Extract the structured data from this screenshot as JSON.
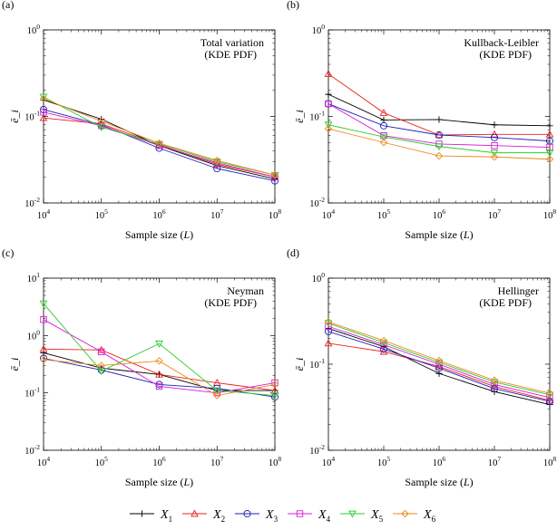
{
  "legend": {
    "items": [
      {
        "symbol": "X",
        "sub": "1",
        "color": "#000000",
        "marker": "plus"
      },
      {
        "symbol": "X",
        "sub": "2",
        "color": "#e8231b",
        "marker": "triangle"
      },
      {
        "symbol": "X",
        "sub": "3",
        "color": "#1f1fb4",
        "marker": "circle"
      },
      {
        "symbol": "X",
        "sub": "4",
        "color": "#d81bd8",
        "marker": "square"
      },
      {
        "symbol": "X",
        "sub": "5",
        "color": "#2ccd2c",
        "marker": "triangle-down"
      },
      {
        "symbol": "X",
        "sub": "6",
        "color": "#ed8a1d",
        "marker": "diamond"
      }
    ]
  },
  "chart_data": [
    {
      "panel": "(a)",
      "type": "line",
      "title": "Total variation",
      "subtitle": "(KDE PDF)",
      "xlabel": "Sample size",
      "xlabel_var": "L",
      "ylabel": "ē_i",
      "xscale": "log",
      "yscale": "log",
      "xlim": [
        10000,
        100000000
      ],
      "ylim": [
        0.01,
        1
      ],
      "xticks": [
        {
          "base": "10",
          "exp": "4"
        },
        {
          "base": "10",
          "exp": "5"
        },
        {
          "base": "10",
          "exp": "6"
        },
        {
          "base": "10",
          "exp": "7"
        },
        {
          "base": "10",
          "exp": "8"
        }
      ],
      "yticks": [
        {
          "base": "10",
          "exp": "-2"
        },
        {
          "base": "10",
          "exp": "-1"
        },
        {
          "base": "10",
          "exp": "0"
        }
      ],
      "x": [
        10000,
        100000,
        1000000,
        10000000,
        100000000
      ],
      "series": [
        {
          "name": "X1",
          "values": [
            0.155,
            0.093,
            0.046,
            0.027,
            0.019
          ]
        },
        {
          "name": "X2",
          "values": [
            0.096,
            0.082,
            0.047,
            0.028,
            0.02
          ]
        },
        {
          "name": "X3",
          "values": [
            0.12,
            0.08,
            0.043,
            0.025,
            0.018
          ]
        },
        {
          "name": "X4",
          "values": [
            0.112,
            0.078,
            0.046,
            0.029,
            0.02
          ]
        },
        {
          "name": "X5",
          "values": [
            0.168,
            0.075,
            0.048,
            0.03,
            0.021
          ]
        },
        {
          "name": "X6",
          "values": [
            0.16,
            0.088,
            0.049,
            0.031,
            0.021
          ]
        }
      ]
    },
    {
      "panel": "(b)",
      "type": "line",
      "title": "Kullback-Leibler",
      "subtitle": "(KDE PDF)",
      "xlabel": "Sample size",
      "xlabel_var": "L",
      "ylabel": "ē_i",
      "xscale": "log",
      "yscale": "log",
      "xlim": [
        10000,
        100000000
      ],
      "ylim": [
        0.01,
        1
      ],
      "xticks": [
        {
          "base": "10",
          "exp": "4"
        },
        {
          "base": "10",
          "exp": "5"
        },
        {
          "base": "10",
          "exp": "6"
        },
        {
          "base": "10",
          "exp": "7"
        },
        {
          "base": "10",
          "exp": "8"
        }
      ],
      "yticks": [
        {
          "base": "10",
          "exp": "-2"
        },
        {
          "base": "10",
          "exp": "-1"
        },
        {
          "base": "10",
          "exp": "0"
        }
      ],
      "x": [
        10000,
        100000,
        1000000,
        10000000,
        100000000
      ],
      "series": [
        {
          "name": "X1",
          "values": [
            0.18,
            0.091,
            0.092,
            0.08,
            0.078
          ]
        },
        {
          "name": "X2",
          "values": [
            0.31,
            0.11,
            0.061,
            0.062,
            0.062
          ]
        },
        {
          "name": "X3",
          "values": [
            0.14,
            0.078,
            0.061,
            0.057,
            0.052
          ]
        },
        {
          "name": "X4",
          "values": [
            0.14,
            0.06,
            0.048,
            0.046,
            0.044
          ]
        },
        {
          "name": "X5",
          "values": [
            0.08,
            0.058,
            0.045,
            0.038,
            0.038
          ]
        },
        {
          "name": "X6",
          "values": [
            0.072,
            0.05,
            0.035,
            0.034,
            0.032
          ]
        }
      ]
    },
    {
      "panel": "(c)",
      "type": "line",
      "title": "Neyman",
      "subtitle": "(KDE PDF)",
      "xlabel": "Sample size",
      "xlabel_var": "L",
      "ylabel": "ē_i",
      "xscale": "log",
      "yscale": "log",
      "xlim": [
        10000,
        100000000
      ],
      "ylim": [
        0.01,
        10
      ],
      "xticks": [
        {
          "base": "10",
          "exp": "4"
        },
        {
          "base": "10",
          "exp": "5"
        },
        {
          "base": "10",
          "exp": "6"
        },
        {
          "base": "10",
          "exp": "7"
        },
        {
          "base": "10",
          "exp": "8"
        }
      ],
      "yticks": [
        {
          "base": "10",
          "exp": "-2"
        },
        {
          "base": "10",
          "exp": "-1"
        },
        {
          "base": "10",
          "exp": "0"
        },
        {
          "base": "10",
          "exp": "1"
        }
      ],
      "x": [
        10000,
        100000,
        1000000,
        10000000,
        100000000
      ],
      "series": [
        {
          "name": "X1",
          "values": [
            0.5,
            0.27,
            0.21,
            0.11,
            0.11
          ]
        },
        {
          "name": "X2",
          "values": [
            0.58,
            0.56,
            0.21,
            0.15,
            0.11
          ]
        },
        {
          "name": "X3",
          "values": [
            0.4,
            0.25,
            0.14,
            0.12,
            0.085
          ]
        },
        {
          "name": "X4",
          "values": [
            1.9,
            0.52,
            0.13,
            0.1,
            0.15
          ]
        },
        {
          "name": "X5",
          "values": [
            3.6,
            0.24,
            0.72,
            0.11,
            0.09
          ]
        },
        {
          "name": "X6",
          "values": [
            0.38,
            0.3,
            0.36,
            0.09,
            0.14
          ]
        }
      ]
    },
    {
      "panel": "(d)",
      "type": "line",
      "title": "Hellinger",
      "subtitle": "(KDE PDF)",
      "xlabel": "Sample size",
      "xlabel_var": "L",
      "ylabel": "ē_i",
      "xscale": "log",
      "yscale": "log",
      "xlim": [
        10000,
        100000000
      ],
      "ylim": [
        0.01,
        1
      ],
      "xticks": [
        {
          "base": "10",
          "exp": "4"
        },
        {
          "base": "10",
          "exp": "5"
        },
        {
          "base": "10",
          "exp": "6"
        },
        {
          "base": "10",
          "exp": "7"
        },
        {
          "base": "10",
          "exp": "8"
        }
      ],
      "yticks": [
        {
          "base": "10",
          "exp": "-2"
        },
        {
          "base": "10",
          "exp": "-1"
        },
        {
          "base": "10",
          "exp": "0"
        }
      ],
      "x": [
        10000,
        100000,
        1000000,
        10000000,
        100000000
      ],
      "series": [
        {
          "name": "X1",
          "values": [
            0.26,
            0.16,
            0.078,
            0.048,
            0.034
          ]
        },
        {
          "name": "X2",
          "values": [
            0.175,
            0.14,
            0.094,
            0.055,
            0.038
          ]
        },
        {
          "name": "X3",
          "values": [
            0.24,
            0.15,
            0.09,
            0.052,
            0.037
          ]
        },
        {
          "name": "X4",
          "values": [
            0.275,
            0.168,
            0.1,
            0.058,
            0.041
          ]
        },
        {
          "name": "X5",
          "values": [
            0.3,
            0.178,
            0.105,
            0.062,
            0.044
          ]
        },
        {
          "name": "X6",
          "values": [
            0.31,
            0.188,
            0.11,
            0.065,
            0.046
          ]
        }
      ]
    }
  ]
}
